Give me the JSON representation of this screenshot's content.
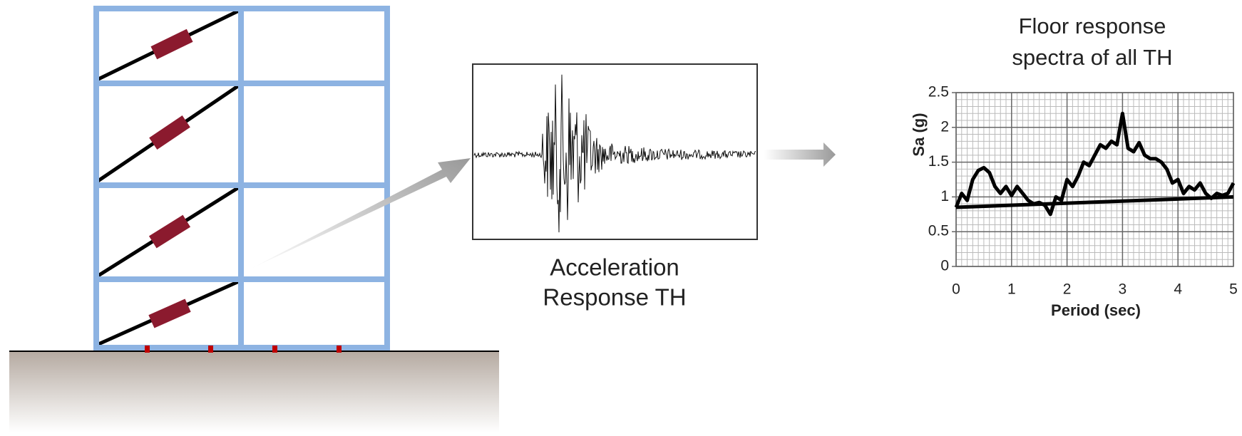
{
  "labels": {
    "time_history": [
      "Acceleration",
      "Response TH"
    ]
  },
  "chart_data": {
    "type": "line",
    "title": [
      "Floor response",
      "spectra of all TH"
    ],
    "xlabel": "Period (sec)",
    "ylabel": "Sa (g)",
    "xlim": [
      0,
      5
    ],
    "xticks": [
      0,
      1,
      2,
      3,
      4,
      5
    ],
    "ylim": [
      0,
      2.5
    ],
    "yticks": [
      0,
      0.5,
      1,
      1.5,
      2,
      2.5
    ],
    "grid": true,
    "series": [
      {
        "color": "#000000",
        "x": [
          0,
          0.1,
          0.2,
          0.3,
          0.4,
          0.5,
          0.6,
          0.7,
          0.8,
          0.9,
          1,
          1.1,
          1.2,
          1.3,
          1.4,
          1.5,
          1.6,
          1.7,
          1.8,
          1.9,
          2,
          2.1,
          2.2,
          2.3,
          2.4,
          2.5,
          2.6,
          2.7,
          2.8,
          2.9,
          3,
          3.1,
          3.2,
          3.3,
          3.4,
          3.5,
          3.6,
          3.7,
          3.8,
          3.9,
          4,
          4.1,
          4.2,
          4.3,
          4.4,
          4.5,
          4.6,
          4.7,
          4.8,
          4.9,
          5
        ],
        "values": [
          0.85,
          1.05,
          0.95,
          1.25,
          1.38,
          1.42,
          1.35,
          1.15,
          1.05,
          1.15,
          1.02,
          1.15,
          1.05,
          0.95,
          0.9,
          0.92,
          0.88,
          0.75,
          1,
          0.95,
          1.25,
          1.15,
          1.3,
          1.5,
          1.45,
          1.6,
          1.75,
          1.7,
          1.8,
          1.75,
          2.2,
          1.7,
          1.65,
          1.78,
          1.6,
          1.55,
          1.55,
          1.5,
          1.4,
          1.2,
          1.25,
          1.05,
          1.15,
          1.1,
          1.2,
          1.05,
          0.98,
          1.05,
          1.02,
          1.05,
          1.2
        ]
      },
      {
        "color": "#000000",
        "x": [
          0,
          5
        ],
        "values": [
          0.85,
          1
        ]
      }
    ]
  }
}
